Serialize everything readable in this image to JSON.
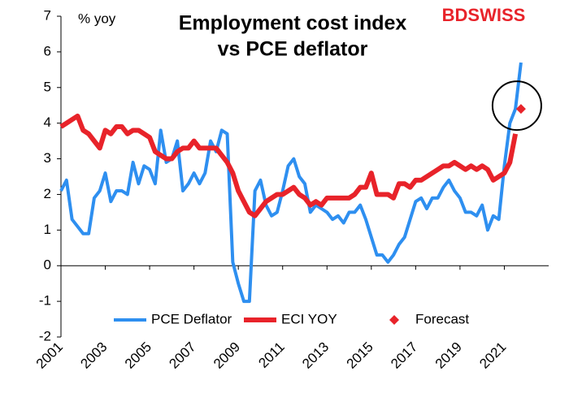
{
  "chart_data": {
    "type": "line",
    "title": [
      "Employment cost index",
      "vs PCE deflator"
    ],
    "y_label": "% yoy",
    "logo": "BDSWISS",
    "x": [
      2001,
      2001.25,
      2001.5,
      2001.75,
      2002,
      2002.25,
      2002.5,
      2002.75,
      2003,
      2003.25,
      2003.5,
      2003.75,
      2004,
      2004.25,
      2004.5,
      2004.75,
      2005,
      2005.25,
      2005.5,
      2005.75,
      2006,
      2006.25,
      2006.5,
      2006.75,
      2007,
      2007.25,
      2007.5,
      2007.75,
      2008,
      2008.25,
      2008.5,
      2008.75,
      2009,
      2009.25,
      2009.5,
      2009.75,
      2010,
      2010.25,
      2010.5,
      2010.75,
      2011,
      2011.25,
      2011.5,
      2011.75,
      2012,
      2012.25,
      2012.5,
      2012.75,
      2013,
      2013.25,
      2013.5,
      2013.75,
      2014,
      2014.25,
      2014.5,
      2014.75,
      2015,
      2015.25,
      2015.5,
      2015.75,
      2016,
      2016.25,
      2016.5,
      2016.75,
      2017,
      2017.25,
      2017.5,
      2017.75,
      2018,
      2018.25,
      2018.5,
      2018.75,
      2019,
      2019.25,
      2019.5,
      2019.75,
      2020,
      2020.25,
      2020.5,
      2020.75,
      2021,
      2021.25,
      2021.5,
      2021.75
    ],
    "series": [
      {
        "name": "PCE Deflator",
        "color": "#2e8ff0",
        "values": [
          2.1,
          2.4,
          1.3,
          1.1,
          0.9,
          0.9,
          1.9,
          2.1,
          2.6,
          1.8,
          2.1,
          2.1,
          2.0,
          2.9,
          2.3,
          2.8,
          2.7,
          2.3,
          3.8,
          2.9,
          3.0,
          3.5,
          2.1,
          2.3,
          2.6,
          2.3,
          2.6,
          3.5,
          3.2,
          3.8,
          3.7,
          0.1,
          -0.5,
          -1.0,
          -1.0,
          2.1,
          2.4,
          1.7,
          1.4,
          1.5,
          2.1,
          2.8,
          3.0,
          2.5,
          2.3,
          1.5,
          1.7,
          1.6,
          1.5,
          1.3,
          1.4,
          1.2,
          1.5,
          1.5,
          1.7,
          1.3,
          0.8,
          0.3,
          0.3,
          0.1,
          0.3,
          0.6,
          0.8,
          1.3,
          1.8,
          1.9,
          1.6,
          1.9,
          1.9,
          2.2,
          2.4,
          2.1,
          1.9,
          1.5,
          1.5,
          1.4,
          1.7,
          1.0,
          1.4,
          1.3,
          2.8,
          4.0,
          4.4,
          5.7
        ]
      },
      {
        "name": "ECI YOY",
        "color": "#e8232a",
        "values": [
          3.9,
          4.0,
          4.1,
          4.2,
          3.8,
          3.7,
          3.5,
          3.3,
          3.8,
          3.7,
          3.9,
          3.9,
          3.7,
          3.8,
          3.8,
          3.7,
          3.6,
          3.2,
          3.1,
          3.0,
          3.0,
          3.2,
          3.3,
          3.3,
          3.5,
          3.3,
          3.3,
          3.3,
          3.3,
          3.1,
          2.9,
          2.6,
          2.1,
          1.8,
          1.5,
          1.4,
          1.6,
          1.8,
          1.9,
          2.0,
          2.0,
          2.1,
          2.2,
          2.0,
          1.9,
          1.7,
          1.8,
          1.7,
          1.9,
          1.9,
          1.9,
          1.9,
          1.9,
          2.0,
          2.2,
          2.2,
          2.6,
          2.0,
          2.0,
          2.0,
          1.9,
          2.3,
          2.3,
          2.2,
          2.4,
          2.4,
          2.5,
          2.6,
          2.7,
          2.8,
          2.8,
          2.9,
          2.8,
          2.7,
          2.8,
          2.7,
          2.8,
          2.7,
          2.4,
          2.5,
          2.6,
          2.9,
          3.7,
          null
        ]
      },
      {
        "name": "Forecast",
        "color": "#e8232a",
        "marker": "diamond",
        "x": [
          2021.75
        ],
        "values": [
          4.4
        ]
      }
    ],
    "xlim": [
      2001,
      2023
    ],
    "xticks": [
      2001,
      2003,
      2005,
      2007,
      2009,
      2011,
      2013,
      2015,
      2017,
      2019,
      2021
    ],
    "ylim": [
      -2,
      7
    ],
    "yticks": [
      -2,
      -1,
      0,
      1,
      2,
      3,
      4,
      5,
      6,
      7
    ],
    "grid": false,
    "legend": "bottom"
  }
}
